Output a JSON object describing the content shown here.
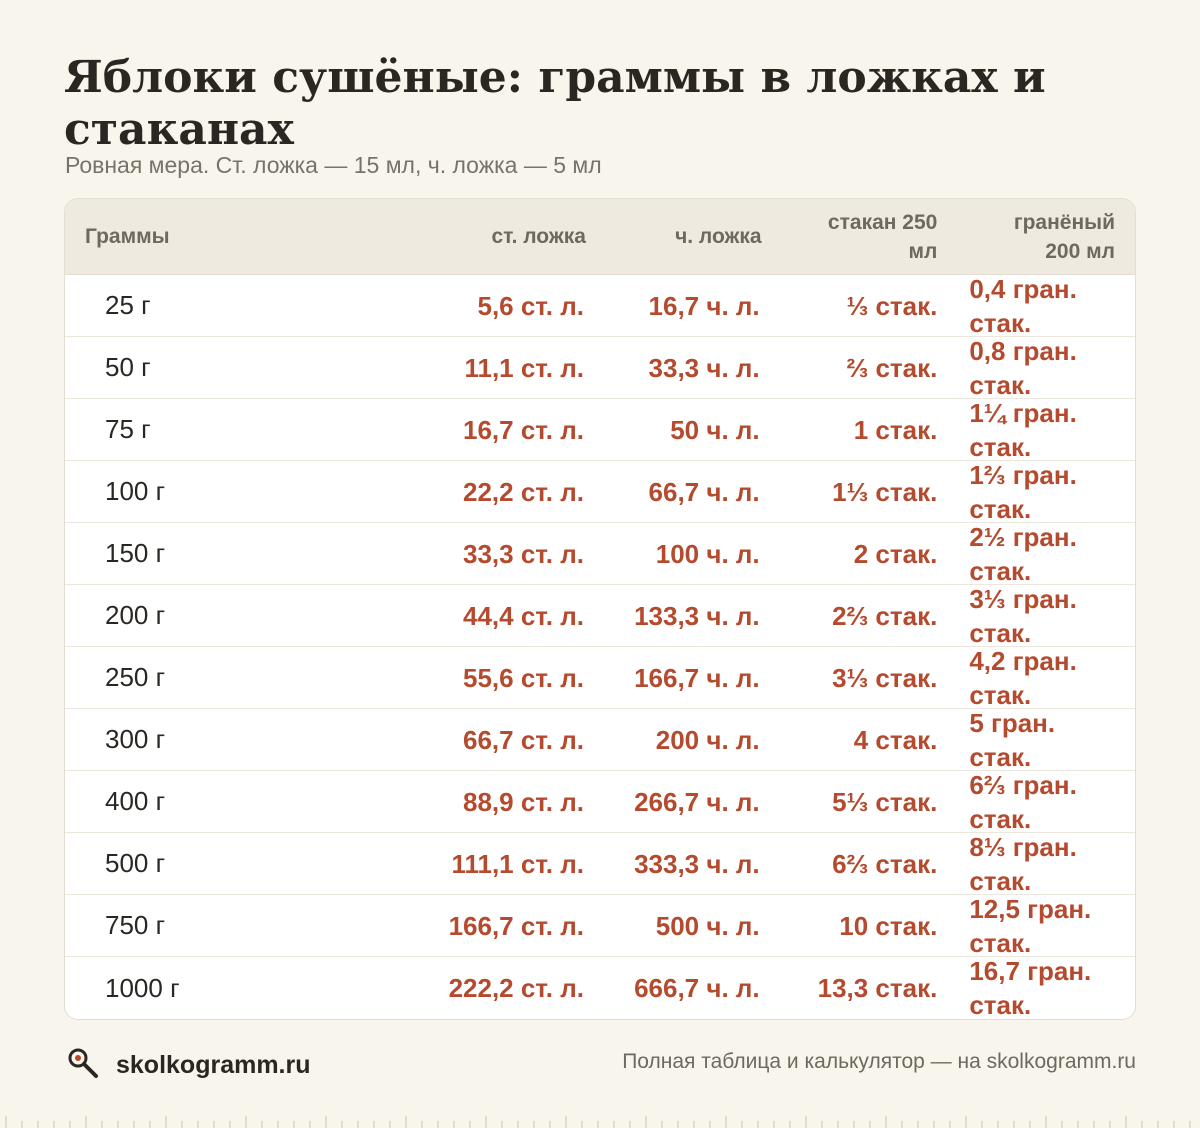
{
  "title": "Яблоки сушёные: граммы в ложках и стаканах",
  "subtitle": "Ровная мера. Ст. ложка — 15 мл, ч. ложка — 5 мл",
  "table": {
    "headers": [
      "Граммы",
      "ст. ложка",
      "ч. ложка",
      "стакан 250 мл",
      "гранёный 200 мл"
    ],
    "rows": [
      [
        "25 г",
        "5,6 ст. л.",
        "16,7 ч. л.",
        "⅓ стак.",
        "0,4 гран. стак."
      ],
      [
        "50 г",
        "11,1 ст. л.",
        "33,3 ч. л.",
        "⅔ стак.",
        "0,8 гран. стак."
      ],
      [
        "75 г",
        "16,7 ст. л.",
        "50 ч. л.",
        "1 стак.",
        "1¼ гран. стак."
      ],
      [
        "100 г",
        "22,2 ст. л.",
        "66,7 ч. л.",
        "1⅓ стак.",
        "1⅔ гран. стак."
      ],
      [
        "150 г",
        "33,3 ст. л.",
        "100 ч. л.",
        "2 стак.",
        "2½ гран. стак."
      ],
      [
        "200 г",
        "44,4 ст. л.",
        "133,3 ч. л.",
        "2⅔ стак.",
        "3⅓ гран. стак."
      ],
      [
        "250 г",
        "55,6 ст. л.",
        "166,7 ч. л.",
        "3⅓ стак.",
        "4,2 гран. стак."
      ],
      [
        "300 г",
        "66,7 ст. л.",
        "200 ч. л.",
        "4 стак.",
        "5 гран. стак."
      ],
      [
        "400 г",
        "88,9 ст. л.",
        "266,7 ч. л.",
        "5⅓ стак.",
        "6⅔ гран. стак."
      ],
      [
        "500 г",
        "111,1 ст. л.",
        "333,3 ч. л.",
        "6⅔ стак.",
        "8⅓ гран. стак."
      ],
      [
        "750 г",
        "166,7 ст. л.",
        "500 ч. л.",
        "10 стак.",
        "12,5 гран. стак."
      ],
      [
        "1000 г",
        "222,2 ст. л.",
        "666,7 ч. л.",
        "13,3 стак.",
        "16,7 гран. стак."
      ]
    ]
  },
  "footer": {
    "logo_icon": "magnifier-icon",
    "site": "skolkogramm.ru",
    "note": "Полная таблица и калькулятор — на skolkogramm.ru"
  },
  "colors": {
    "background": "#f8f5ec",
    "value": "#b44a2e",
    "header_bg": "#efeadf",
    "text": "#2a2723"
  }
}
